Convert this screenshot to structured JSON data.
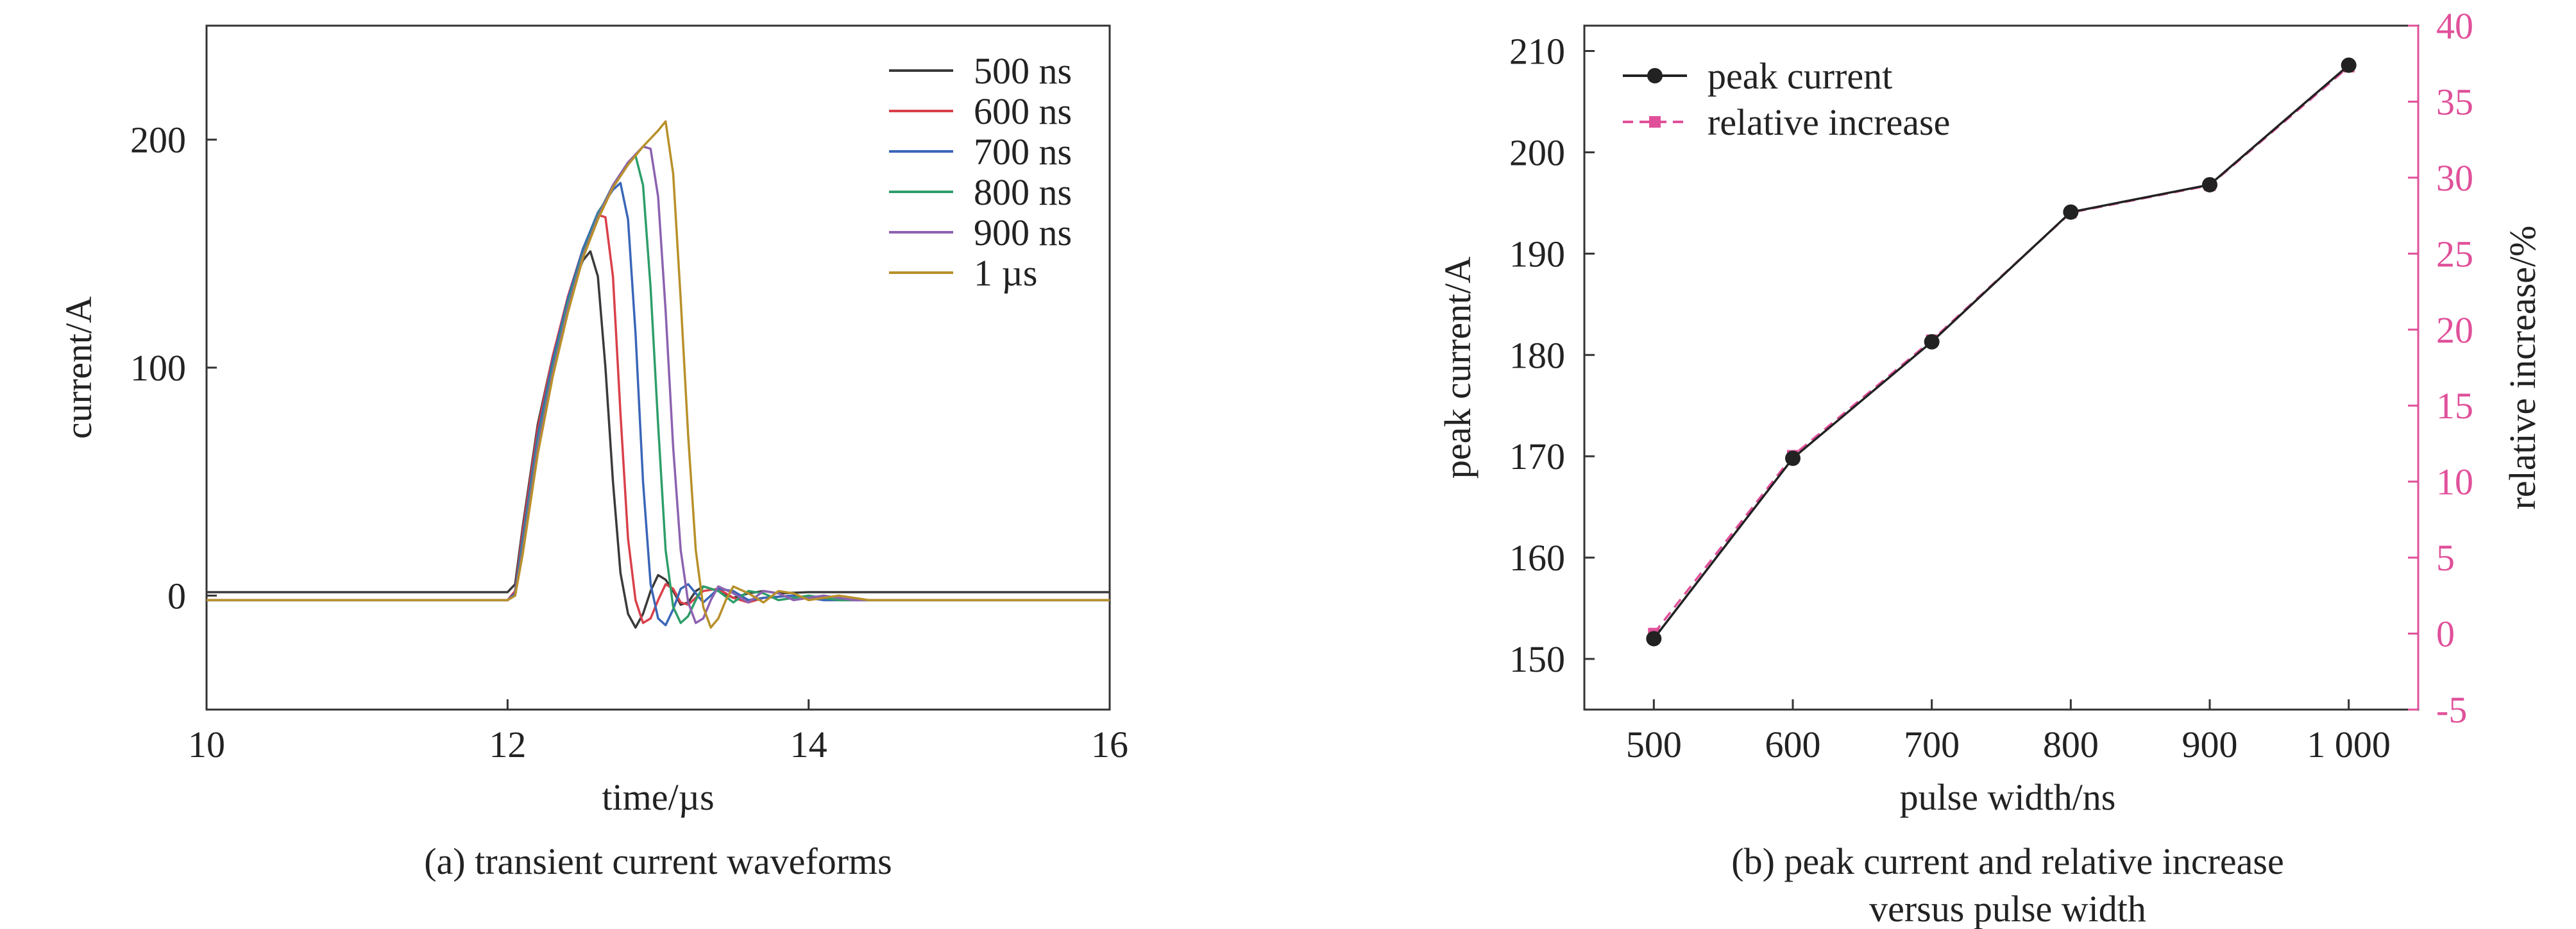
{
  "figure": {
    "panel_a": {
      "caption": "(a) transient current waveforms",
      "xlabel": "time/µs",
      "ylabel": "current/A",
      "x_ticks": [
        10,
        12,
        14,
        16
      ],
      "y_ticks": [
        0,
        100,
        200
      ],
      "xlim": [
        10,
        16
      ],
      "ylim": [
        -50,
        250
      ],
      "legend": [
        "500 ns",
        "600 ns",
        "700 ns",
        "800 ns",
        "900 ns",
        "1 µs"
      ]
    },
    "panel_b": {
      "caption_line1": "(b) peak current and relative increase",
      "caption_line2": "versus pulse width",
      "xlabel": "pulse width/ns",
      "ylabel_left": "peak current/A",
      "ylabel_right": "relative increase/%",
      "x_tick_labels": [
        "500",
        "600",
        "700",
        "800",
        "900",
        "1 000"
      ],
      "y_left_ticks": [
        150,
        160,
        170,
        180,
        190,
        200,
        210
      ],
      "y_right_ticks": [
        -5,
        0,
        5,
        10,
        15,
        20,
        25,
        30,
        35,
        40
      ],
      "legend": [
        "peak current",
        "relative increase"
      ]
    }
  },
  "chart_data": [
    {
      "type": "line",
      "title": "(a) transient current waveforms",
      "xlabel": "time/µs",
      "ylabel": "current/A",
      "xlim": [
        10,
        16
      ],
      "ylim": [
        -50,
        250
      ],
      "legend_position": "top-right",
      "series": [
        {
          "name": "500 ns",
          "color": "#3a3a3a",
          "baseline": 1.5,
          "x": [
            10,
            12.0,
            12.05,
            12.1,
            12.2,
            12.3,
            12.4,
            12.5,
            12.55,
            12.6,
            12.65,
            12.7,
            12.75,
            12.8,
            12.85,
            12.9,
            12.95,
            13.0,
            13.05,
            13.1,
            13.15,
            13.2,
            13.25,
            13.3,
            13.4,
            13.5,
            13.6,
            13.7,
            13.8,
            14.0,
            16
          ],
          "y": [
            1.5,
            1.5,
            5,
            30,
            75,
            105,
            130,
            147,
            151,
            140,
            100,
            50,
            10,
            -8,
            -14,
            -8,
            2,
            9,
            7,
            2,
            -4,
            -3,
            2,
            4,
            2,
            -1,
            1,
            2,
            1,
            1.5,
            1.5
          ]
        },
        {
          "name": "600 ns",
          "color": "#d9404a",
          "baseline": -2,
          "x": [
            10,
            12.0,
            12.05,
            12.1,
            12.2,
            12.3,
            12.4,
            12.5,
            12.6,
            12.65,
            12.7,
            12.75,
            12.8,
            12.85,
            12.9,
            12.95,
            13.0,
            13.05,
            13.1,
            13.15,
            13.2,
            13.3,
            13.4,
            13.5,
            13.6,
            13.7,
            13.9,
            14.1,
            16
          ],
          "y": [
            -2,
            -2,
            2,
            28,
            73,
            105,
            131,
            152,
            167,
            166,
            140,
            80,
            25,
            -2,
            -12,
            -10,
            -2,
            5,
            3,
            -3,
            -4,
            2,
            3,
            -1,
            -3,
            -1,
            0,
            -2,
            -2
          ]
        },
        {
          "name": "700 ns",
          "color": "#3a66b8",
          "baseline": -2,
          "x": [
            10,
            12.0,
            12.05,
            12.1,
            12.2,
            12.3,
            12.4,
            12.5,
            12.6,
            12.7,
            12.75,
            12.8,
            12.85,
            12.9,
            12.95,
            13.0,
            13.05,
            13.1,
            13.15,
            13.2,
            13.25,
            13.3,
            13.4,
            13.5,
            13.6,
            13.7,
            13.9,
            14.1,
            16
          ],
          "y": [
            -2,
            -2,
            1,
            25,
            70,
            103,
            130,
            152,
            168,
            178,
            181,
            165,
            115,
            50,
            5,
            -10,
            -13,
            -6,
            3,
            5,
            1,
            -3,
            3,
            2,
            -2,
            -1,
            0,
            -2,
            -2
          ]
        },
        {
          "name": "800 ns",
          "color": "#2e9e6a",
          "baseline": -2,
          "x": [
            10,
            12.0,
            12.05,
            12.1,
            12.2,
            12.3,
            12.4,
            12.5,
            12.6,
            12.7,
            12.8,
            12.85,
            12.9,
            12.95,
            13.0,
            13.05,
            13.1,
            13.15,
            13.2,
            13.25,
            13.3,
            13.4,
            13.5,
            13.6,
            13.7,
            13.8,
            14.0,
            14.2,
            16
          ],
          "y": [
            -2,
            -2,
            0,
            22,
            67,
            100,
            128,
            150,
            167,
            180,
            190,
            193,
            180,
            135,
            75,
            20,
            -5,
            -12,
            -9,
            -2,
            4,
            2,
            -3,
            2,
            1,
            -2,
            0,
            -2,
            -2
          ]
        },
        {
          "name": "900 ns",
          "color": "#8c62b0",
          "baseline": -2,
          "x": [
            10,
            12.0,
            12.05,
            12.1,
            12.2,
            12.3,
            12.4,
            12.5,
            12.6,
            12.7,
            12.8,
            12.9,
            12.95,
            13.0,
            13.05,
            13.1,
            13.15,
            13.2,
            13.25,
            13.3,
            13.35,
            13.4,
            13.5,
            13.6,
            13.7,
            13.8,
            13.9,
            14.1,
            14.3,
            16
          ],
          "y": [
            -2,
            -2,
            0,
            20,
            65,
            98,
            126,
            149,
            166,
            180,
            190,
            197,
            196,
            175,
            125,
            65,
            20,
            -3,
            -12,
            -10,
            -2,
            4,
            1,
            -3,
            2,
            1,
            -2,
            0,
            -2,
            -2
          ]
        },
        {
          "name": "1 µs",
          "color": "#b8902a",
          "baseline": -2,
          "x": [
            10,
            12.0,
            12.05,
            12.1,
            12.2,
            12.3,
            12.4,
            12.5,
            12.6,
            12.7,
            12.8,
            12.9,
            13.0,
            13.05,
            13.1,
            13.15,
            13.2,
            13.25,
            13.3,
            13.35,
            13.4,
            13.45,
            13.5,
            13.6,
            13.7,
            13.8,
            13.9,
            14.0,
            14.2,
            14.4,
            16
          ],
          "y": [
            -2,
            -2,
            0,
            18,
            62,
            96,
            124,
            148,
            165,
            179,
            189,
            197,
            204,
            208,
            185,
            130,
            70,
            20,
            -5,
            -14,
            -10,
            -2,
            4,
            1,
            -3,
            2,
            1,
            -2,
            0,
            -2,
            -2
          ]
        }
      ]
    },
    {
      "type": "line",
      "title": "(b) peak current and relative increase versus pulse width",
      "xlabel": "pulse width/ns",
      "ylabel": "peak current/A",
      "ylabel_right": "relative increase/%",
      "categories": [
        "500",
        "600",
        "700",
        "800",
        "900",
        "1 000"
      ],
      "x": [
        500,
        600,
        700,
        800,
        900,
        1000
      ],
      "ylim": [
        145,
        212.5
      ],
      "ylim_right": [
        -5,
        40
      ],
      "legend_position": "top-left",
      "series": [
        {
          "name": "peak current",
          "axis": "left",
          "color": "#222222",
          "marker": "circle",
          "style": "solid",
          "values": [
            152,
            169.8,
            181.3,
            194.1,
            196.8,
            208.6
          ]
        },
        {
          "name": "relative increase",
          "axis": "right",
          "color": "#e0509a",
          "marker": "square",
          "style": "dashed",
          "values": [
            0,
            11.7,
            19.3,
            27.7,
            29.5,
            37.3
          ]
        }
      ]
    }
  ]
}
